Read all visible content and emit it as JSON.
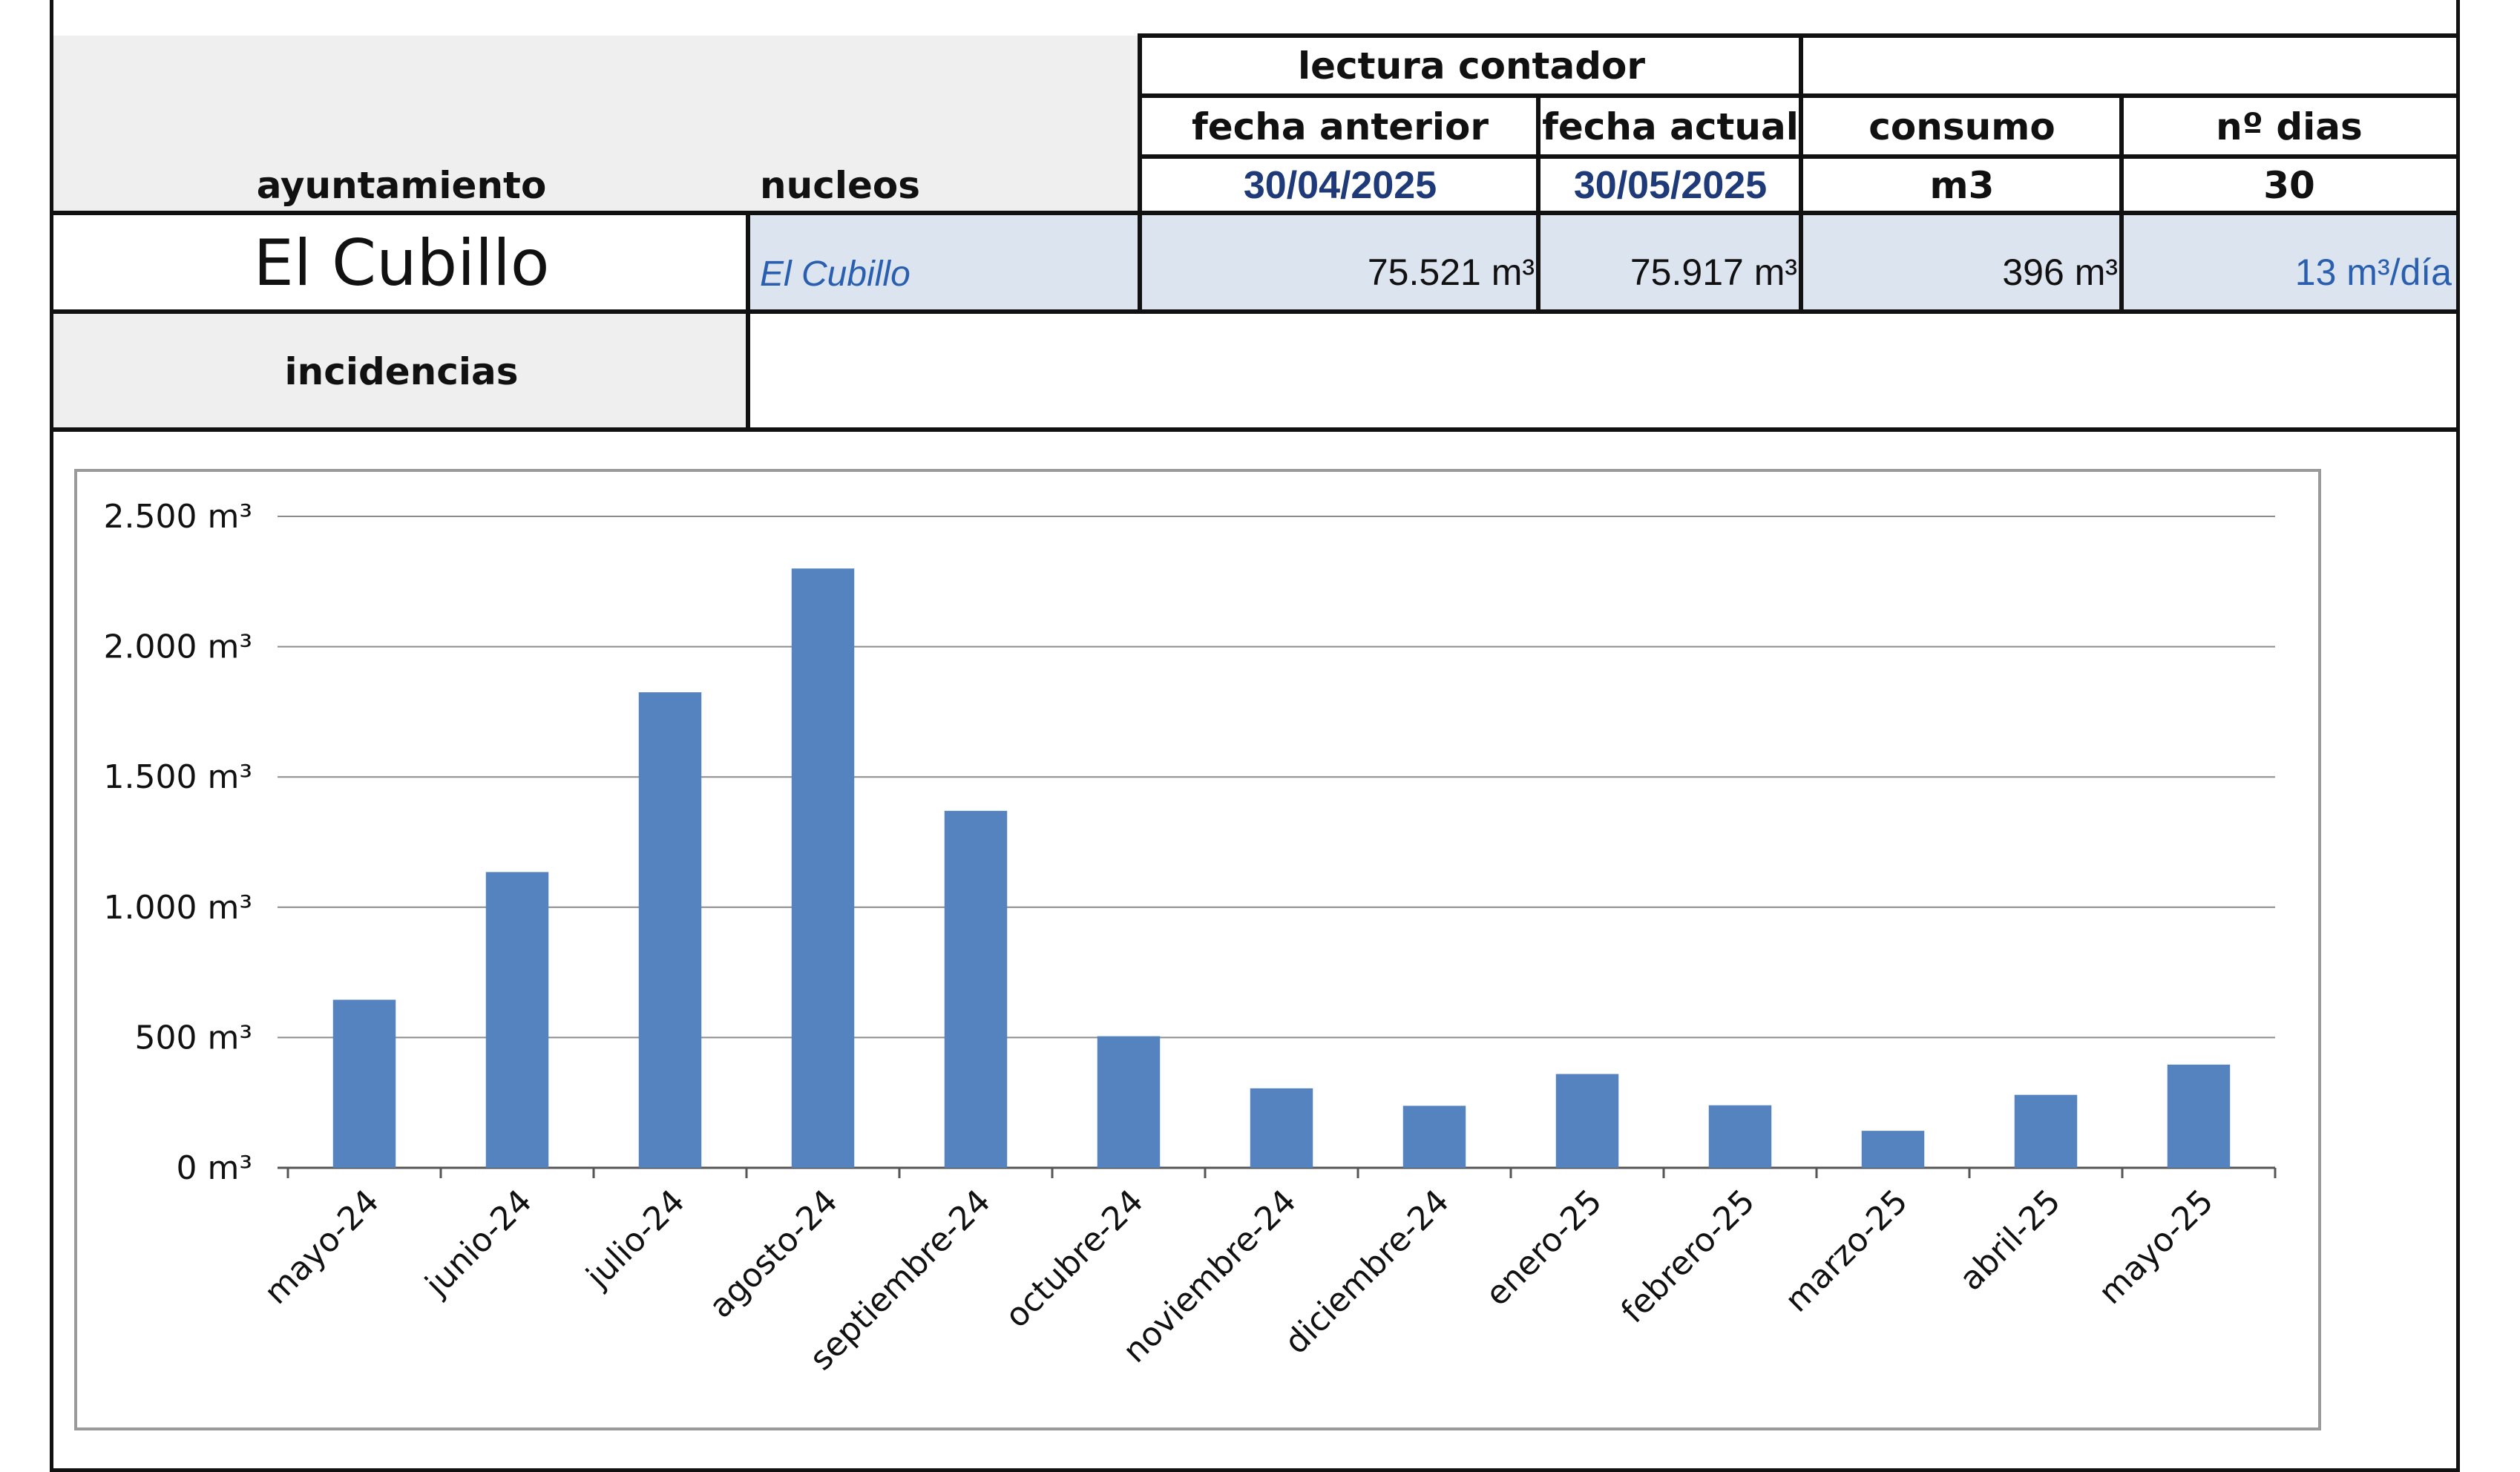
{
  "table": {
    "header_left": {
      "ayuntamiento": "ayuntamiento",
      "nucleos": "nucleos"
    },
    "lectura_contador": "lectura contador",
    "columns": {
      "fecha_anterior": "fecha anterior",
      "fecha_actual": "fecha actual",
      "consumo": "consumo",
      "n_dias": "nº dias"
    },
    "subheader": {
      "fecha_anterior": "30/04/2025",
      "fecha_actual": "30/05/2025",
      "consumo_unit": "m3",
      "n_dias": "30"
    },
    "row": {
      "ayuntamiento": "El Cubillo",
      "nucleo": "El Cubillo",
      "lectura_anterior": "75.521 m³",
      "lectura_actual": "75.917 m³",
      "consumo": "396 m³",
      "media_diaria": "13 m³/día"
    },
    "incidencias_label": "incidencias",
    "incidencias_value": ""
  },
  "chart_data": {
    "type": "bar",
    "title": "",
    "xlabel": "",
    "ylabel": "",
    "categories": [
      "mayo-24",
      "junio-24",
      "julio-24",
      "agosto-24",
      "septiembre-24",
      "octubre-24",
      "noviembre-24",
      "diciembre-24",
      "enero-25",
      "febrero-25",
      "marzo-25",
      "abril-25",
      "mayo-25"
    ],
    "values": [
      645,
      1135,
      1825,
      2300,
      1370,
      505,
      305,
      238,
      360,
      240,
      142,
      280,
      396
    ],
    "ylim": [
      0,
      2500
    ],
    "yticks": [
      0,
      500,
      1000,
      1500,
      2000,
      2500
    ],
    "ytick_labels": [
      "0 m³",
      "500 m³",
      "1.000 m³",
      "1.500 m³",
      "2.000 m³",
      "2.500 m³"
    ],
    "grid": true,
    "legend": "none",
    "bar_color": "#5583c0"
  }
}
